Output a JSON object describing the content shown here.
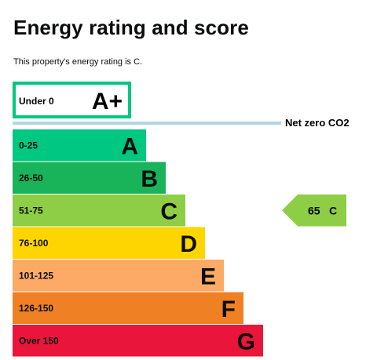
{
  "header": {
    "title": "Energy rating and score",
    "subtitle": "This property's energy rating is C."
  },
  "chart_data": {
    "type": "bar",
    "title": "Energy rating and score",
    "top_band": {
      "range": "Under 0",
      "letter": "A+",
      "color": "#00c781",
      "fill": "#ffffff"
    },
    "net_zero": {
      "label": "Net zero CO2",
      "color": "#b4d3e0"
    },
    "bands": [
      {
        "range": "0-25",
        "letter": "A",
        "color": "#00c781",
        "text_color": "#0b0c0c"
      },
      {
        "range": "26-50",
        "letter": "B",
        "color": "#19b459",
        "text_color": "#0b0c0c"
      },
      {
        "range": "51-75",
        "letter": "C",
        "color": "#8dce46",
        "text_color": "#0b0c0c"
      },
      {
        "range": "76-100",
        "letter": "D",
        "color": "#ffd500",
        "text_color": "#0b0c0c"
      },
      {
        "range": "101-125",
        "letter": "E",
        "color": "#fcaa65",
        "text_color": "#0b0c0c"
      },
      {
        "range": "126-150",
        "letter": "F",
        "color": "#ef8023",
        "text_color": "#0b0c0c"
      },
      {
        "range": "Over 150",
        "letter": "G",
        "color": "#e9153b",
        "text_color": "#0b0c0c"
      }
    ],
    "current": {
      "score": 65,
      "rating": "C",
      "color": "#8dce46",
      "band_index": 2
    }
  }
}
